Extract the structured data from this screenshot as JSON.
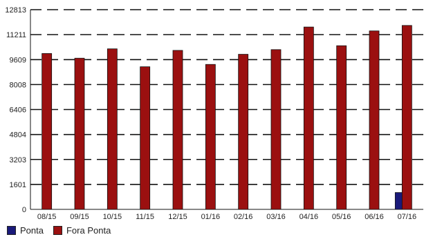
{
  "chart_data": {
    "type": "bar",
    "title": "",
    "xlabel": "",
    "ylabel": "",
    "categories": [
      "08/15",
      "09/15",
      "10/15",
      "11/15",
      "12/15",
      "01/16",
      "02/16",
      "03/16",
      "04/16",
      "05/16",
      "06/16",
      "07/16"
    ],
    "series": [
      {
        "name": "Ponta",
        "color": "#1a1a7a",
        "values": [
          0,
          0,
          0,
          0,
          0,
          0,
          0,
          0,
          0,
          0,
          0,
          1080
        ]
      },
      {
        "name": "Fora Ponta",
        "color": "#9b1010",
        "values": [
          10000,
          9700,
          10300,
          9150,
          10200,
          9300,
          9950,
          10250,
          11700,
          10500,
          11450,
          11800
        ]
      }
    ],
    "ylim": [
      0,
      12813
    ],
    "yticks": [
      0,
      1601,
      3203,
      4804,
      6406,
      8008,
      9609,
      11211,
      12813
    ],
    "ytick_labels": [
      "0",
      "1601",
      "3203",
      "4804",
      "6406",
      "8008",
      "9609",
      "11211",
      "12813"
    ],
    "grid": "dashed-horizontal",
    "legend": "bottom-left"
  }
}
